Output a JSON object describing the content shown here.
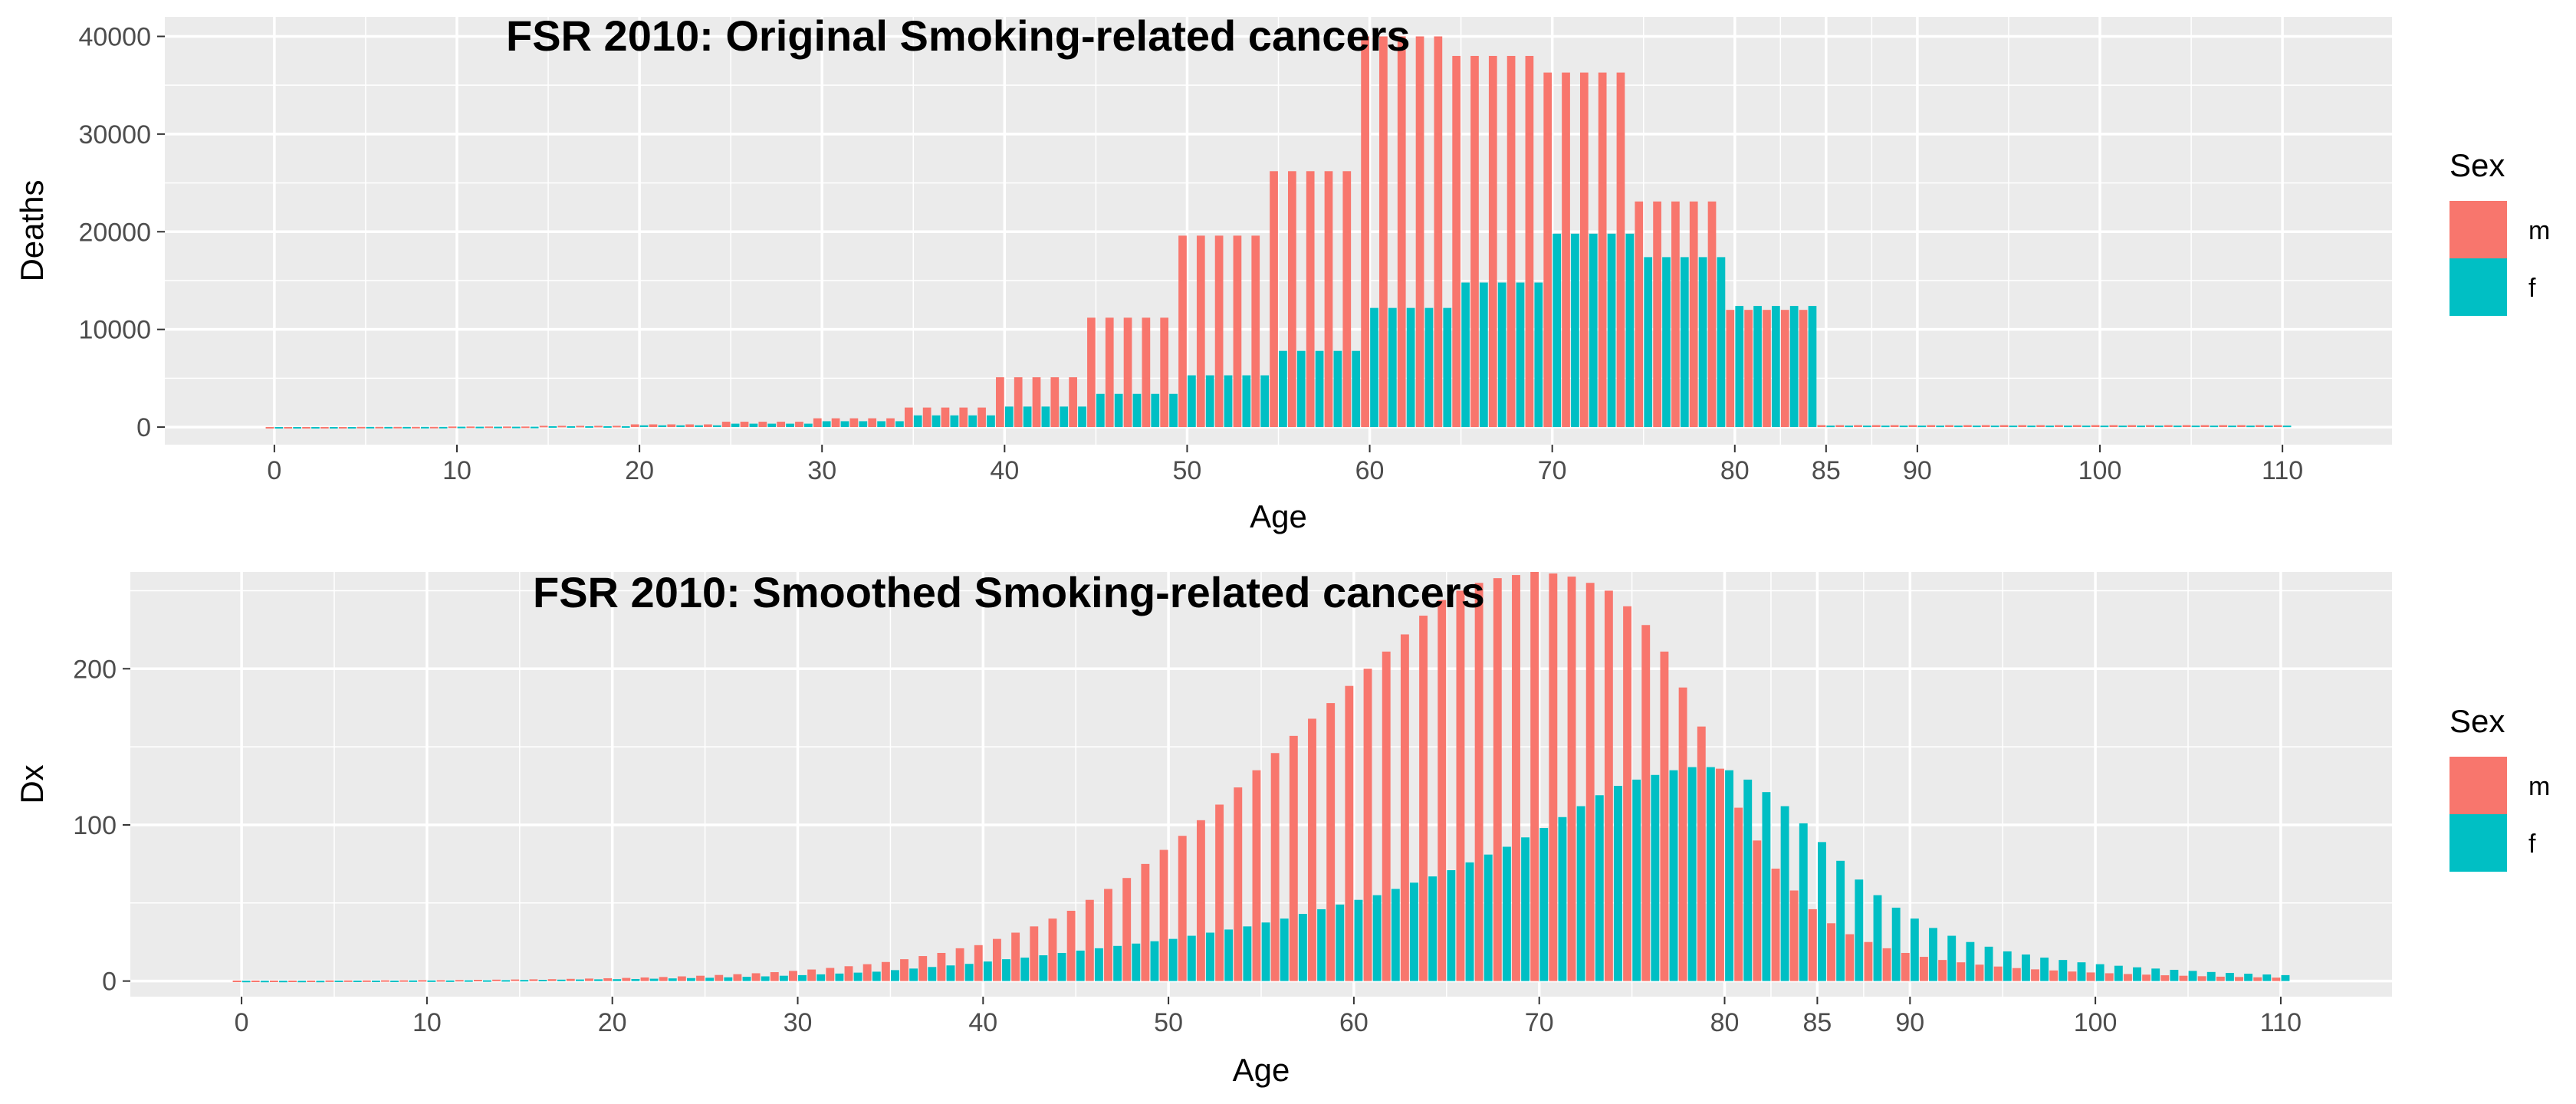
{
  "chart_data": [
    {
      "type": "bar",
      "title": "FSR 2010: Original Smoking-related cancers",
      "xlabel": "Age",
      "ylabel": "Deaths",
      "xlim": [
        -6,
        116
      ],
      "ylim": [
        -1800,
        42000
      ],
      "x_ticks": [
        0,
        10,
        20,
        30,
        40,
        50,
        60,
        70,
        80,
        85,
        90,
        100,
        110
      ],
      "y_ticks": [
        0,
        10000,
        20000,
        30000,
        40000
      ],
      "y_tick_labels": [
        "0",
        "10000",
        "20000",
        "30000",
        "40000"
      ],
      "ages_start": 0,
      "legend_title": "Sex",
      "legend_position": "right",
      "grid": true,
      "series": [
        {
          "name": "m",
          "color": "#F8766D",
          "values": [
            12,
            12,
            12,
            12,
            12,
            25,
            25,
            25,
            25,
            25,
            60,
            60,
            60,
            60,
            60,
            130,
            130,
            130,
            130,
            130,
            280,
            280,
            280,
            280,
            280,
            550,
            550,
            550,
            550,
            550,
            900,
            900,
            900,
            900,
            900,
            2000,
            2000,
            2000,
            2000,
            2000,
            5100,
            5100,
            5100,
            5100,
            5100,
            11200,
            11200,
            11200,
            11200,
            11200,
            19600,
            19600,
            19600,
            19600,
            19600,
            26200,
            26200,
            26200,
            26200,
            26200,
            40000,
            40000,
            40000,
            40000,
            40000,
            38000,
            38000,
            38000,
            38000,
            38000,
            36300,
            36300,
            36300,
            36300,
            36300,
            23100,
            23100,
            23100,
            23100,
            23100,
            12000,
            12000,
            12000,
            12000,
            12000,
            200,
            200,
            200,
            200,
            200,
            200,
            200,
            200,
            200,
            200,
            200,
            200,
            200,
            200,
            200,
            200,
            200,
            200,
            200,
            200,
            200,
            200,
            200,
            200,
            200,
            200
          ]
        },
        {
          "name": "f",
          "color": "#00BFC4",
          "values": [
            10,
            10,
            10,
            10,
            10,
            20,
            20,
            20,
            20,
            20,
            40,
            40,
            40,
            40,
            40,
            90,
            90,
            90,
            90,
            90,
            180,
            180,
            180,
            180,
            180,
            350,
            350,
            350,
            350,
            350,
            600,
            600,
            600,
            600,
            600,
            1200,
            1200,
            1200,
            1200,
            1200,
            2100,
            2100,
            2100,
            2100,
            2100,
            3400,
            3400,
            3400,
            3400,
            3400,
            5300,
            5300,
            5300,
            5300,
            5300,
            7800,
            7800,
            7800,
            7800,
            7800,
            12200,
            12200,
            12200,
            12200,
            12200,
            14800,
            14800,
            14800,
            14800,
            14800,
            19800,
            19800,
            19800,
            19800,
            19800,
            17400,
            17400,
            17400,
            17400,
            17400,
            12400,
            12400,
            12400,
            12400,
            12400,
            150,
            150,
            150,
            150,
            150,
            150,
            150,
            150,
            150,
            150,
            150,
            150,
            150,
            150,
            150,
            150,
            150,
            150,
            150,
            150,
            150,
            150,
            150,
            150,
            150,
            150
          ]
        }
      ]
    },
    {
      "type": "bar",
      "title": "FSR 2010: Smoothed Smoking-related cancers",
      "xlabel": "Age",
      "ylabel": "Dx",
      "xlim": [
        -6,
        116
      ],
      "ylim": [
        -10,
        262
      ],
      "x_ticks": [
        0,
        10,
        20,
        30,
        40,
        50,
        60,
        70,
        80,
        85,
        90,
        100,
        110
      ],
      "y_ticks": [
        0,
        100,
        200
      ],
      "y_tick_labels": [
        "0",
        "100",
        "200"
      ],
      "ages_start": 0,
      "legend_title": "Sex",
      "legend_position": "right",
      "grid": true,
      "series": [
        {
          "name": "m",
          "color": "#F8766D",
          "values": [
            0.3,
            0.3,
            0.3,
            0.3,
            0.3,
            0.4,
            0.4,
            0.4,
            0.5,
            0.5,
            0.6,
            0.6,
            0.7,
            0.8,
            0.9,
            1.0,
            1.1,
            1.2,
            1.4,
            1.6,
            1.8,
            2.0,
            2.3,
            2.6,
            3.0,
            3.4,
            3.9,
            4.4,
            5.0,
            5.7,
            6.5,
            7.4,
            8.4,
            9.5,
            10.8,
            12.2,
            14.0,
            16.0,
            18.0,
            21.0,
            23.0,
            27.0,
            31.0,
            35.0,
            40.0,
            45.0,
            52.0,
            59.0,
            66.0,
            75.0,
            84.0,
            93.0,
            103.0,
            113.0,
            124.0,
            135.0,
            146.0,
            157.0,
            168.0,
            178.0,
            189.0,
            200.0,
            211.0,
            222.0,
            234.0,
            244.0,
            250.0,
            255.0,
            258.0,
            260.0,
            262.0,
            261.0,
            259.0,
            255.0,
            250.0,
            240.0,
            228.0,
            211.0,
            188.0,
            163.0,
            136.0,
            111.0,
            90.0,
            72.0,
            58.0,
            46.0,
            37.0,
            30.0,
            25.0,
            21.0,
            18.0,
            15.5,
            13.5,
            12.0,
            10.5,
            9.3,
            8.3,
            7.5,
            6.8,
            6.1,
            5.5,
            5.0,
            4.5,
            4.1,
            3.7,
            3.4,
            3.1,
            2.8,
            2.6,
            2.4,
            2.2
          ]
        },
        {
          "name": "f",
          "color": "#00BFC4",
          "values": [
            0.2,
            0.2,
            0.2,
            0.2,
            0.2,
            0.3,
            0.3,
            0.3,
            0.3,
            0.4,
            0.4,
            0.4,
            0.5,
            0.5,
            0.6,
            0.7,
            0.8,
            0.9,
            1.0,
            1.1,
            1.2,
            1.3,
            1.5,
            1.7,
            1.9,
            2.1,
            2.4,
            2.7,
            3.0,
            3.4,
            3.8,
            4.3,
            4.8,
            5.4,
            6.0,
            7.0,
            8.0,
            9.0,
            10.0,
            11.0,
            12.5,
            14.0,
            15.0,
            16.5,
            18.0,
            19.5,
            21.0,
            22.5,
            24.0,
            25.5,
            27.0,
            29.0,
            31.0,
            33.0,
            35.0,
            37.5,
            40.0,
            43.0,
            46.0,
            49.0,
            52.0,
            55.0,
            59.0,
            63.0,
            67.0,
            71.0,
            76.0,
            81.0,
            86.0,
            92.0,
            98.0,
            105.0,
            112.0,
            119.0,
            125.0,
            129.0,
            132.0,
            135.0,
            137.0,
            137.0,
            135.0,
            129.0,
            121.0,
            112.0,
            101.0,
            89.0,
            77.0,
            65.0,
            55.0,
            47.0,
            40.0,
            34.0,
            29.0,
            25.0,
            22.0,
            19.0,
            17.0,
            15.0,
            13.5,
            12.0,
            10.8,
            9.8,
            8.8,
            8.0,
            7.2,
            6.5,
            5.8,
            5.2,
            4.7,
            4.2,
            3.8
          ]
        }
      ]
    }
  ]
}
